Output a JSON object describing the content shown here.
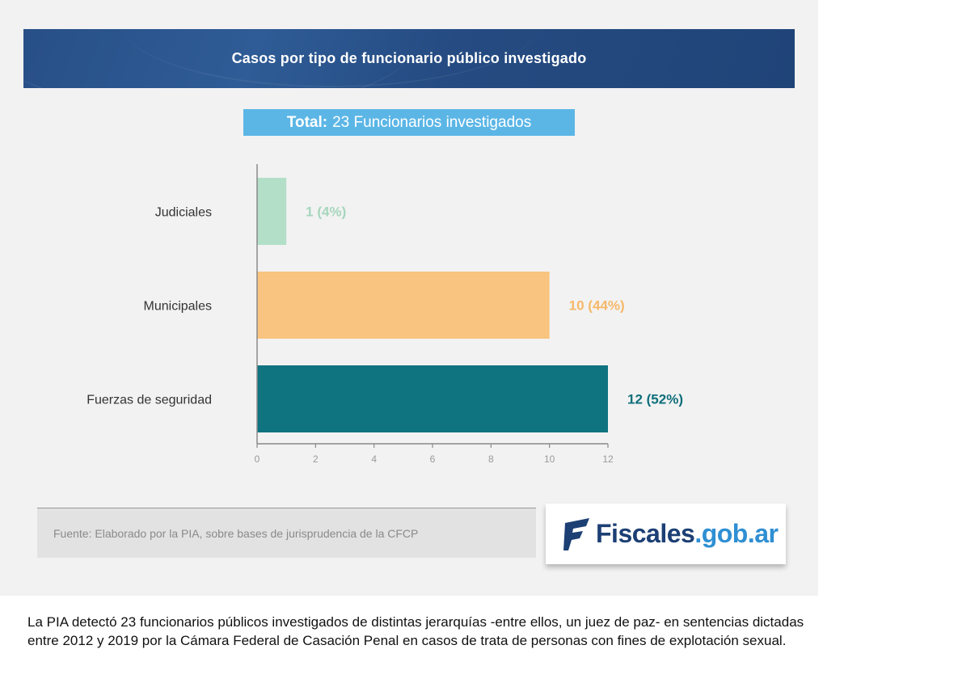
{
  "header": {
    "title": "Casos por tipo de funcionario público investigado"
  },
  "total": {
    "label": "Total:",
    "text": "23 Funcionarios investigados"
  },
  "chart_data": {
    "type": "bar",
    "orientation": "horizontal",
    "categories": [
      "Judiciales",
      "Municipales",
      "Fuerzas de seguridad"
    ],
    "values": [
      1,
      10,
      12
    ],
    "data_labels": [
      "1 (4%)",
      "10 (44%)",
      "12 (52%)"
    ],
    "colors": [
      "#b3dfc8",
      "#f8c47f",
      "#0f7380"
    ],
    "xlim": [
      0,
      12
    ],
    "xticks": [
      0,
      2,
      4,
      6,
      8,
      10,
      12
    ],
    "title": "Casos por tipo de funcionario público investigado",
    "xlabel": "",
    "ylabel": "",
    "grid": false
  },
  "source": {
    "text": "Fuente: Elaborado por la PIA, sobre bases de jurisprudencia de la CFCP"
  },
  "logo": {
    "name": "Fiscales",
    "domain": ".gob.ar",
    "primary_color": "#1c3f74",
    "accent_color": "#2f8fd3"
  },
  "caption": {
    "text": "La PIA detectó 23 funcionarios públicos investigados de distintas jerarquías -entre ellos, un juez de paz- en sentencias dictadas entre 2012 y 2019 por la Cámara Federal de Casación Penal en casos de trata de personas con fines de explotación sexual."
  }
}
